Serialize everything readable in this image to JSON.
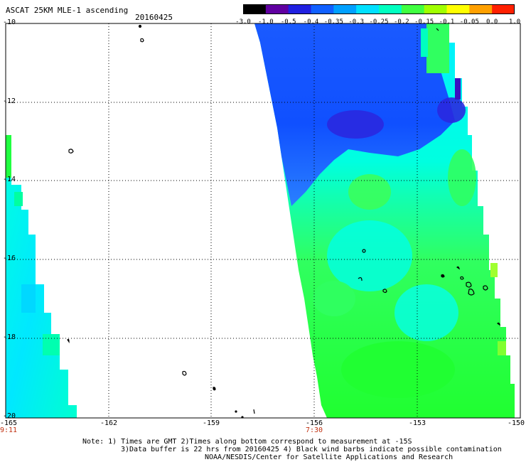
{
  "header": {
    "title": "ASCAT 25KM MLE-1 ascending",
    "date": "20160425"
  },
  "colorbar": {
    "labels": [
      "-3.0",
      "-1.0",
      "-0.5",
      "-0.4",
      "-0.35",
      "-0.3",
      "-0.25",
      "-0.2",
      "-0.15",
      "-0.1",
      "-0.05",
      "0.0",
      "1.0"
    ],
    "colors": [
      "#000000",
      "#6000a0",
      "#2020e0",
      "#1060ff",
      "#00a0ff",
      "#00e0ff",
      "#00ffc0",
      "#40ff40",
      "#a0ff00",
      "#ffff00",
      "#ffa000",
      "#ff2000"
    ]
  },
  "axes": {
    "lat_labels": [
      "-10",
      "-12",
      "-14",
      "-16",
      "-18",
      "-20"
    ],
    "lon_labels": [
      "-165",
      "-162",
      "-159",
      "-156",
      "-153",
      "-150"
    ]
  },
  "swath_times": {
    "left": "9:11",
    "right": "7:30"
  },
  "notes": {
    "line1": "Note: 1) Times are GMT 2)Times along bottom correspond to measurement at -15S",
    "line2": "3)Data buffer is 22 hrs from 20160425 4) Black wind barbs indicate possible contamination",
    "line3": "NOAA/NESDIS/Center for Satellite Applications and Research"
  },
  "colors": {
    "blue": "#1060ff",
    "deep_blue": "#2020e0",
    "cyan": "#00ffff",
    "green": "#20ff20",
    "time_red": "#c03010"
  }
}
